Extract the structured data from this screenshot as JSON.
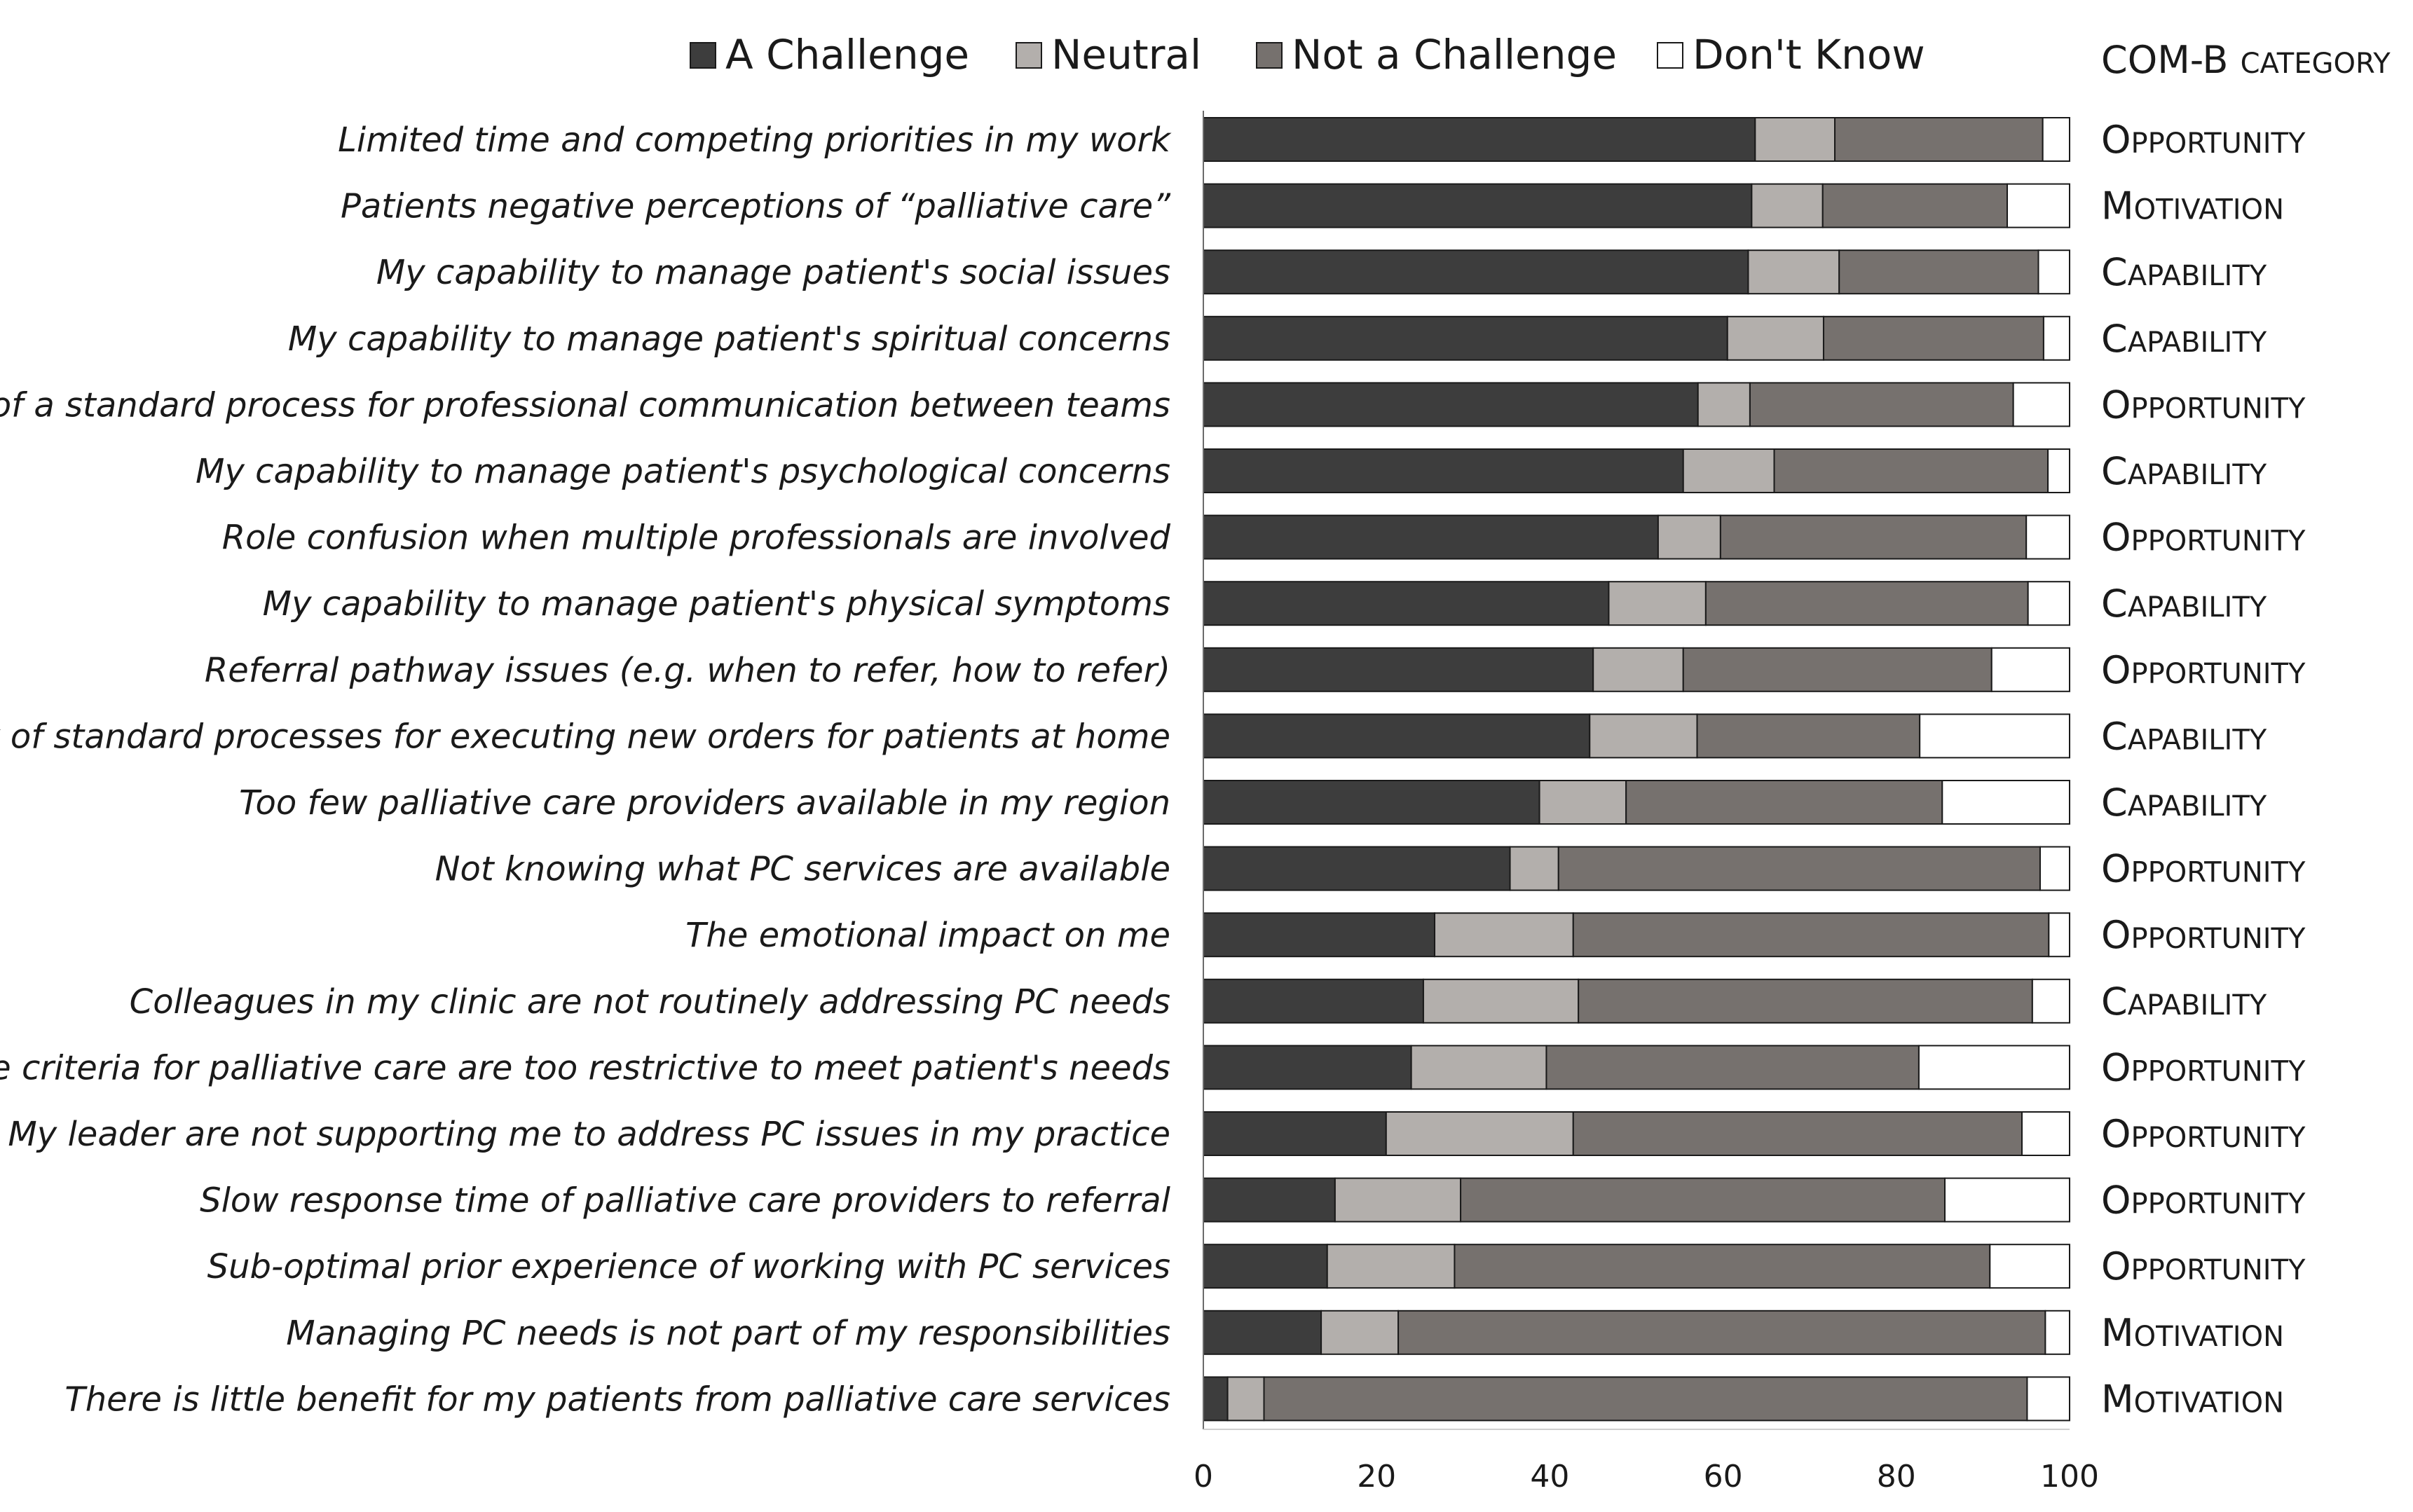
{
  "chart_data": {
    "type": "bar",
    "orientation": "horizontal",
    "stacked": true,
    "xlim": [
      0,
      100
    ],
    "xticks": [
      "0",
      "20",
      "40",
      "60",
      "80",
      "100"
    ],
    "legend": {
      "position": "top"
    },
    "colors": [
      "#3d3d3d",
      "#b3afac",
      "#76716e",
      "#ffffff"
    ],
    "com_header": {
      "first": "COM-B ",
      "rest": "CATEGORY"
    },
    "categories": [
      "Limited time and competing priorities in my work",
      "Patients negative perceptions of “palliative care”",
      "My capability to manage patient's social issues",
      "My capability to manage patient's spiritual concerns",
      "Lack of a standard process for professional communication between teams",
      "My capability to manage patient's psychological concerns",
      "Role confusion when multiple professionals are involved",
      "My capability to manage patient's physical symptoms",
      "Referral pathway issues (e.g. when to refer, how to refer)",
      "Lack of standard processes for executing new orders for patients at home",
      "Too few palliative care providers available in my region",
      "Not knowing what PC services are available",
      "The emotional impact on me",
      "Colleagues in my clinic are not routinely addressing PC needs",
      "The criteria for palliative care are too restrictive to meet patient's needs",
      "My leader are not supporting me to address PC issues in my practice",
      "Slow response time of palliative care providers to referral",
      "Sub-optimal prior experience of working with PC services",
      "Managing PC needs is not part of my responsibilities",
      "There is little benefit for my patients from palliative care services"
    ],
    "com_b": [
      "Opportunity",
      "Motivation",
      "Capability",
      "Capability",
      "Opportunity",
      "Capability",
      "Opportunity",
      "Capability",
      "Opportunity",
      "Capability",
      "Capability",
      "Opportunity",
      "Opportunity",
      "Capability",
      "Opportunity",
      "Opportunity",
      "Opportunity",
      "Opportunity",
      "Motivation",
      "Motivation"
    ],
    "series": [
      {
        "name": "A Challenge",
        "values": [
          63.7,
          63.3,
          62.9,
          60.5,
          57.1,
          55.4,
          52.5,
          46.8,
          45.0,
          44.6,
          38.8,
          35.4,
          26.7,
          25.4,
          24.0,
          21.1,
          15.2,
          14.3,
          13.6,
          2.8
        ]
      },
      {
        "name": "Neutral",
        "values": [
          9.2,
          8.2,
          10.5,
          11.1,
          6.0,
          10.5,
          7.2,
          11.2,
          10.4,
          12.4,
          10.0,
          5.6,
          16.0,
          17.9,
          15.6,
          21.6,
          14.5,
          14.7,
          8.9,
          4.2
        ]
      },
      {
        "name": "Not a Challenge",
        "values": [
          24.0,
          21.3,
          23.0,
          25.4,
          30.4,
          31.6,
          35.3,
          37.2,
          35.6,
          25.7,
          36.5,
          55.6,
          54.9,
          52.4,
          43.0,
          51.8,
          55.9,
          61.8,
          74.7,
          88.1
        ]
      },
      {
        "name": "Don't Know",
        "values": [
          3.1,
          7.2,
          3.6,
          3.0,
          6.5,
          2.5,
          5.0,
          4.8,
          9.0,
          17.3,
          14.7,
          3.4,
          2.4,
          4.3,
          17.4,
          5.5,
          14.4,
          9.2,
          2.8,
          4.9
        ]
      }
    ]
  }
}
